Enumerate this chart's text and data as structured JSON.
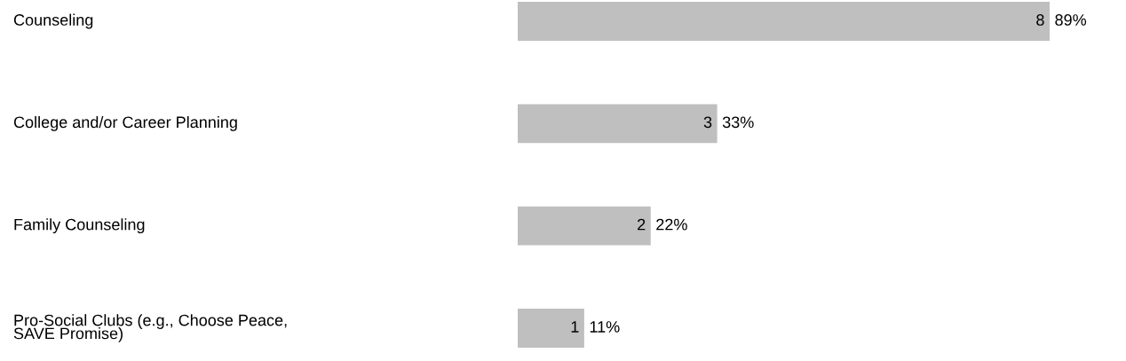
{
  "chart_data": {
    "type": "bar",
    "orientation": "horizontal",
    "categories": [
      "Counseling",
      "College and/or Career Planning",
      "Family Counseling",
      "Pro-Social Clubs (e.g., Choose Peace,\nSAVE Promise)"
    ],
    "values": [
      8,
      3,
      2,
      1
    ],
    "color": "#bfbfbf",
    "data_labels": true,
    "annotations": [
      {
        "text": "89%",
        "x": 8,
        "y": "Counseling"
      },
      {
        "text": "33%",
        "x": 3,
        "y": "College and/or Career Planning"
      },
      {
        "text": "22%",
        "x": 2,
        "y": "Family Counseling"
      },
      {
        "text": "11%",
        "x": 1,
        "y": "Pro-Social Clubs (e.g., Choose Peace,\nSAVE Promise)"
      }
    ]
  }
}
